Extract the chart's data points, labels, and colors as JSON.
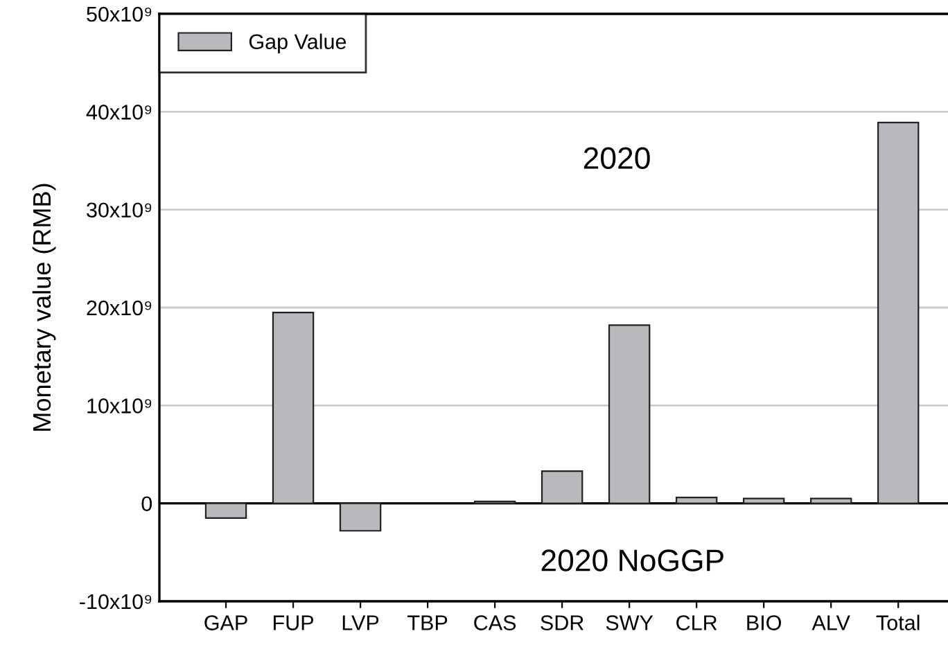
{
  "chart_data": {
    "type": "bar",
    "ylabel": "Monetary value (RMB)",
    "categories": [
      "GAP",
      "FUP",
      "LVP",
      "TBP",
      "CAS",
      "SDR",
      "SWY",
      "CLR",
      "BIO",
      "ALV",
      "Total"
    ],
    "series": [
      {
        "name": "Gap Value",
        "color": "#b8b9bd",
        "values": [
          -1500000000,
          19500000000,
          -2800000000,
          null,
          200000000,
          3300000000,
          18200000000,
          600000000,
          500000000,
          500000000,
          38900000000
        ]
      }
    ],
    "ylim": [
      -10000000000,
      50000000000
    ],
    "yticks": [
      {
        "value": -10000000000,
        "label": "-10x10⁹"
      },
      0,
      {
        "value": 10000000000,
        "label": "10x10⁹"
      },
      {
        "value": 20000000000,
        "label": "20x10⁹"
      },
      {
        "value": 30000000000,
        "label": "30x10⁹"
      },
      {
        "value": 40000000000,
        "label": "40x10⁹"
      },
      {
        "value": 50000000000,
        "label": "50x10⁹"
      }
    ],
    "grid": "y",
    "legend": "top left",
    "ref_lines": [
      {
        "axis": "y",
        "value": 0,
        "color": "#000000"
      }
    ],
    "annotations": [
      "2020",
      "2020 NoGGP"
    ]
  }
}
